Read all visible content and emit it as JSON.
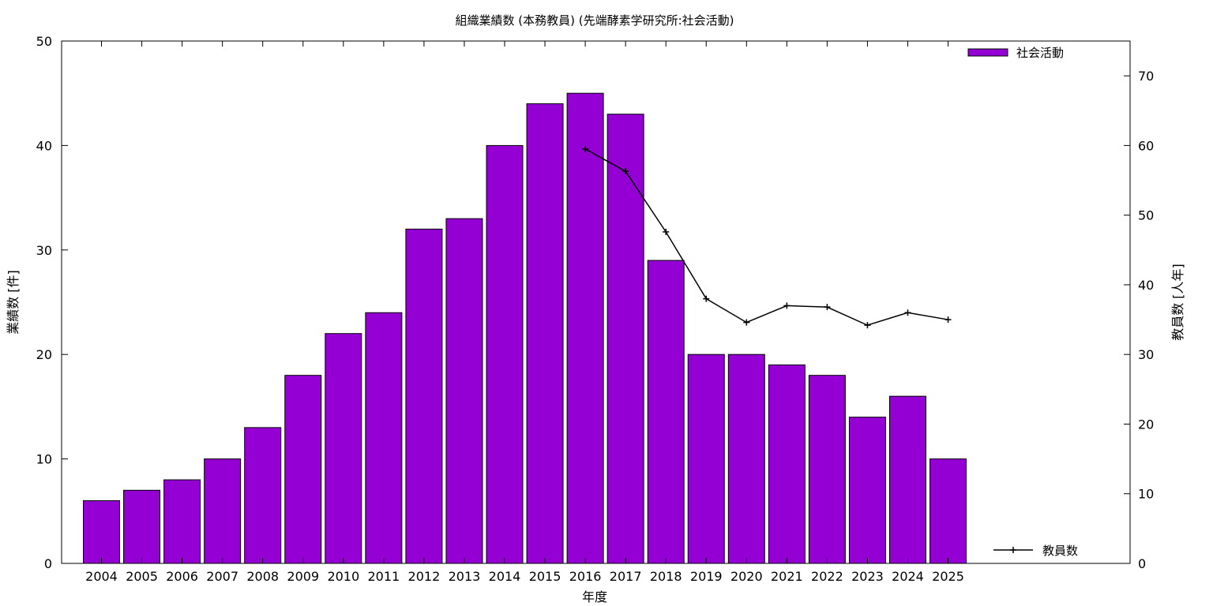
{
  "chart_data": {
    "type": "bar",
    "title": "組織業績数 (本務教員) (先端酵素学研究所:社会活動)",
    "xlabel": "年度",
    "ylabel": "業績数 [件]",
    "y2label": "教員数 [人年]",
    "categories": [
      "2004",
      "2005",
      "2006",
      "2007",
      "2008",
      "2009",
      "2010",
      "2011",
      "2012",
      "2013",
      "2014",
      "2015",
      "2016",
      "2017",
      "2018",
      "2019",
      "2020",
      "2021",
      "2022",
      "2023",
      "2024",
      "2025"
    ],
    "ylim": [
      0,
      50
    ],
    "y2lim": [
      0,
      75
    ],
    "yticks": [
      "0",
      "10",
      "20",
      "30",
      "40",
      "50"
    ],
    "y2ticks": [
      "0",
      "10",
      "20",
      "30",
      "40",
      "50",
      "60",
      "70"
    ],
    "grid": false,
    "series": [
      {
        "name": "社会活動",
        "type": "bar",
        "axis": "left",
        "color": "#9400d3",
        "values": [
          6,
          7,
          8,
          10,
          13,
          18,
          22,
          24,
          32,
          33,
          40,
          44,
          45,
          43,
          29,
          20,
          20,
          19,
          18,
          14,
          16,
          10
        ]
      },
      {
        "name": "教員数",
        "type": "line",
        "axis": "right",
        "color": "#000000",
        "values": [
          null,
          null,
          null,
          null,
          null,
          null,
          null,
          null,
          null,
          null,
          null,
          null,
          59.5,
          56.3,
          47.6,
          38.0,
          34.6,
          37.0,
          36.8,
          34.2,
          36.0,
          35.0
        ]
      }
    ],
    "legend": {
      "bar_position": "top-right",
      "line_position": "bottom-right"
    }
  }
}
